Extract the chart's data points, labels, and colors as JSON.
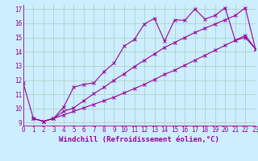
{
  "xlabel": "Windchill (Refroidissement éolien,°C)",
  "bg_color": "#cceeff",
  "line_color": "#990099",
  "grid_color": "#aaccbb",
  "xlim": [
    0,
    23
  ],
  "ylim": [
    8.8,
    17.3
  ],
  "yticks": [
    9,
    10,
    11,
    12,
    13,
    14,
    15,
    16,
    17
  ],
  "xticks": [
    0,
    1,
    2,
    3,
    4,
    5,
    6,
    7,
    8,
    9,
    10,
    11,
    12,
    13,
    14,
    15,
    16,
    17,
    18,
    19,
    20,
    21,
    22,
    23
  ],
  "curve1_x": [
    0,
    1,
    2,
    3,
    4,
    5,
    6,
    7,
    8,
    9,
    10,
    11,
    12,
    13,
    14,
    15,
    16,
    17,
    18,
    19,
    20,
    21,
    22,
    23
  ],
  "curve1_y": [
    11.8,
    9.3,
    9.1,
    9.3,
    10.1,
    11.5,
    11.7,
    11.8,
    12.6,
    13.2,
    14.4,
    14.85,
    15.95,
    16.35,
    14.75,
    16.25,
    16.2,
    17.0,
    16.3,
    16.55,
    17.1,
    14.8,
    15.0,
    14.2
  ],
  "curve2_x": [
    1,
    2,
    3,
    4,
    5,
    6,
    7,
    8,
    9,
    10,
    11,
    12,
    13,
    14,
    15,
    16,
    17,
    18,
    19,
    20,
    21,
    22,
    23
  ],
  "curve2_y": [
    9.3,
    9.1,
    9.3,
    9.8,
    10.05,
    10.55,
    11.05,
    11.5,
    12.0,
    12.45,
    12.95,
    13.4,
    13.85,
    14.3,
    14.65,
    15.0,
    15.35,
    15.65,
    15.95,
    16.25,
    16.55,
    17.1,
    14.2
  ],
  "curve3_x": [
    1,
    2,
    3,
    4,
    5,
    6,
    7,
    8,
    9,
    10,
    11,
    12,
    13,
    14,
    15,
    16,
    17,
    18,
    19,
    20,
    21,
    22,
    23
  ],
  "curve3_y": [
    9.3,
    9.1,
    9.3,
    9.55,
    9.8,
    10.05,
    10.3,
    10.55,
    10.8,
    11.1,
    11.4,
    11.7,
    12.05,
    12.4,
    12.7,
    13.05,
    13.4,
    13.75,
    14.1,
    14.45,
    14.8,
    15.15,
    14.2
  ],
  "marker": "x",
  "markersize": 3,
  "linewidth": 0.8,
  "xlabel_fontsize": 6.5,
  "tick_fontsize": 5.5
}
